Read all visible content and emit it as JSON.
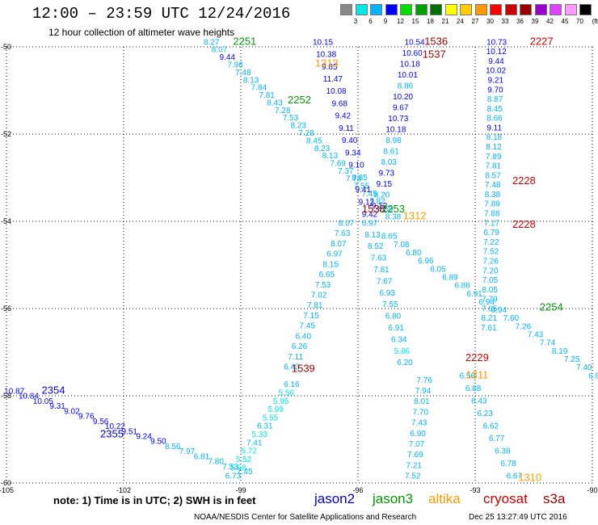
{
  "title": "12:00 – 23:59 UTC 12/24/2016",
  "subtitle": "12 hour collection of altimeter wave heights",
  "colorbar": {
    "unit": "(ft)",
    "colors": [
      "#888888",
      "#00e8e8",
      "#00b4ff",
      "#0000ff",
      "#00dd00",
      "#00a000",
      "#007000",
      "#ffff00",
      "#ffcc00",
      "#ff9900",
      "#ff0000",
      "#cc0000",
      "#990000",
      "#9900cc",
      "#dd44ff",
      "#ff99ff",
      "#000000"
    ],
    "labels": [
      "3",
      "6",
      "9",
      "12",
      "15",
      "18",
      "21",
      "24",
      "27",
      "30",
      "33",
      "36",
      "39",
      "42",
      "45",
      "70"
    ]
  },
  "axes": {
    "lon_labels": [
      "-105",
      "-102",
      "-99",
      "-96",
      "-93",
      "-90"
    ],
    "lat_labels": [
      "-50",
      "-52",
      "-54",
      "-56",
      "-58",
      "-60"
    ]
  },
  "note": "note:  1) Time is in UTC;  2) SWH is in feet",
  "missions": [
    {
      "name": "jason2",
      "color": "#0000cc"
    },
    {
      "name": "jason3",
      "color": "#009900"
    },
    {
      "name": "altika",
      "color": "#ff9900"
    },
    {
      "name": "cryosat",
      "color": "#cc0000"
    },
    {
      "name": "s3a",
      "color": "#990000"
    }
  ],
  "footer": "NOAA/NESDIS Center for Satellite Applications and Research",
  "footer_date": "Dec 25 13:27:49 UTC 2016",
  "time_labels": [
    {
      "text": "2251",
      "lon": -98.9,
      "lat": -49.95,
      "mission": "jason3"
    },
    {
      "text": "2252",
      "lon": -97.5,
      "lat": -51.3,
      "mission": "jason3"
    },
    {
      "text": "1313",
      "lon": -96.8,
      "lat": -50.45,
      "mission": "altika"
    },
    {
      "text": "1536",
      "lon": -94.0,
      "lat": -49.95,
      "mission": "s3a"
    },
    {
      "text": "1537",
      "lon": -94.05,
      "lat": -50.25,
      "mission": "s3a"
    },
    {
      "text": "2227",
      "lon": -91.3,
      "lat": -49.95,
      "mission": "cryosat"
    },
    {
      "text": "2228",
      "lon": -91.75,
      "lat": -53.15,
      "mission": "cryosat"
    },
    {
      "text": "2228",
      "lon": -91.75,
      "lat": -54.15,
      "mission": "cryosat"
    },
    {
      "text": "1538",
      "lon": -95.6,
      "lat": -53.8,
      "mission": "s3a"
    },
    {
      "text": "2253",
      "lon": -95.1,
      "lat": -53.8,
      "mission": "jason3"
    },
    {
      "text": "1312",
      "lon": -94.55,
      "lat": -53.95,
      "mission": "altika"
    },
    {
      "text": "2254",
      "lon": -91.05,
      "lat": -56.05,
      "mission": "jason3"
    },
    {
      "text": "1539",
      "lon": -97.4,
      "lat": -57.45,
      "mission": "s3a"
    },
    {
      "text": "2229",
      "lon": -92.95,
      "lat": -57.2,
      "mission": "cryosat"
    },
    {
      "text": "1311",
      "lon": -92.95,
      "lat": -57.6,
      "mission": "altika"
    },
    {
      "text": "2354",
      "lon": -103.8,
      "lat": -57.95,
      "mission": "jason2"
    },
    {
      "text": "2355",
      "lon": -102.3,
      "lat": -58.95,
      "mission": "jason2"
    },
    {
      "text": "1310",
      "lon": -91.6,
      "lat": -59.95,
      "mission": "altika"
    }
  ],
  "tracks": [
    {
      "name": "jason3-track-a",
      "lon0": -99.75,
      "lat0": -49.95,
      "lon1": -95.1,
      "lat1": -53.95,
      "values": [
        "8.27",
        "8.07",
        "9.44",
        "7.96",
        "7.48",
        "8.13",
        "7.84",
        "7.81",
        "8.43",
        "7.28",
        "7.53",
        "8.23",
        "7.28",
        "8.45",
        "8.23",
        "8.13",
        "7.69",
        "7.37",
        "7.75",
        "7.55",
        "7.45",
        "7.82",
        "8.59",
        "8.38"
      ]
    },
    {
      "name": "s3a-track-b",
      "lon0": -94.55,
      "lat0": -49.95,
      "lon1": -95.45,
      "lat1": -53.7,
      "values": [
        "10.54",
        "10.60",
        "10.18",
        "10.01",
        "8.86",
        "10.20",
        "9.67",
        "10.73",
        "10.18",
        "8.98",
        "8.61",
        "8.03",
        "9.73",
        "9.15",
        "8.20",
        "9.12"
      ]
    },
    {
      "name": "s3a-track-c",
      "lon0": -96.9,
      "lat0": -49.95,
      "lon1": -95.7,
      "lat1": -53.9,
      "values": [
        "10.15",
        "10.38",
        "9.85",
        "11.47",
        "10.08",
        "9.68",
        "9.42",
        "9.11",
        "9.40",
        "9.34",
        "9.10",
        "8.85",
        "9.41",
        "9.12",
        "9.42"
      ]
    },
    {
      "name": "cryosat-track-a",
      "lon0": -92.45,
      "lat0": -49.95,
      "lon1": -92.65,
      "lat1": -56.5,
      "values": [
        "10.73",
        "10.12",
        "9.44",
        "10.02",
        "9.21",
        "9.70",
        "8.87",
        "8.45",
        "8.66",
        "9.11",
        "8.18",
        "8.12",
        "7.89",
        "7.81",
        "8.57",
        "7.48",
        "8.38",
        "7.89",
        "7.88",
        "7.17",
        "6.79",
        "7.22",
        "7.52",
        "7.26",
        "7.20",
        "7.05",
        "8.05",
        "7.79",
        "7.65",
        "8.21",
        "7.61"
      ]
    },
    {
      "name": "s3a-track-d",
      "lon0": -96.3,
      "lat0": -54.1,
      "lon1": -97.7,
      "lat1": -57.4,
      "values": [
        "8.07",
        "7.63",
        "8.07",
        "6.97",
        "8.15",
        "6.65",
        "7.53",
        "7.02",
        "7.81",
        "7.15",
        "7.45",
        "6.40",
        "6.26",
        "7.11",
        "6.43"
      ]
    },
    {
      "name": "s3a-track-e",
      "lon0": -97.7,
      "lat0": -57.8,
      "lon1": -99.2,
      "lat1": -59.9,
      "values": [
        "6.16",
        "5.56",
        "5.95",
        "5.99",
        "5.55",
        "6.31",
        "5.33",
        "7.41",
        "5.72",
        "5.52",
        "5.58",
        "6.73"
      ]
    },
    {
      "name": "altika-track-a",
      "lon0": -95.7,
      "lat0": -54.1,
      "lon1": -94.8,
      "lat1": -57.3,
      "values": [
        "6.97",
        "8.13",
        "8.52",
        "7.63",
        "7.81",
        "7.67",
        "6.93",
        "7.55",
        "6.80",
        "6.91",
        "6.34",
        "5.86",
        "6.20"
      ]
    },
    {
      "name": "altika-track-b",
      "lon0": -94.3,
      "lat0": -57.7,
      "lon1": -94.6,
      "lat1": -59.9,
      "values": [
        "7.76",
        "7.94",
        "8.01",
        "7.70",
        "7.43",
        "6.90",
        "7.07",
        "7.69",
        "7.21",
        "7.52"
      ]
    },
    {
      "name": "jason3-track-b",
      "lon0": -95.2,
      "lat0": -54.4,
      "lon1": -89.9,
      "lat1": -57.6,
      "values": [
        "8.65",
        "7.08",
        "6.80",
        "6.96",
        "6.05",
        "6.89",
        "6.86",
        "6.91",
        "6.94",
        "6.94",
        "7.60",
        "7.26",
        "7.43",
        "7.74",
        "8.19",
        "7.25",
        "7.40",
        "6.97"
      ]
    },
    {
      "name": "cryosat-track-b",
      "lon0": -93.2,
      "lat0": -57.6,
      "lon1": -92.0,
      "lat1": -59.9,
      "values": [
        "6.56",
        "6.88",
        "6.43",
        "6.23",
        "6.62",
        "6.77",
        "6.38",
        "6.78",
        "6.67"
      ]
    },
    {
      "name": "jason2-track-a",
      "lon0": -104.8,
      "lat0": -57.95,
      "lon1": -98.9,
      "lat1": -59.8,
      "values": [
        "10.87",
        "10.84",
        "10.05",
        "9.31",
        "9.02",
        "9.76",
        "9.56",
        "10.22",
        "9.51",
        "9.24",
        "9.50",
        "8.56",
        "7.97",
        "6.81",
        "7.80",
        "7.53",
        "7.45"
      ]
    }
  ]
}
